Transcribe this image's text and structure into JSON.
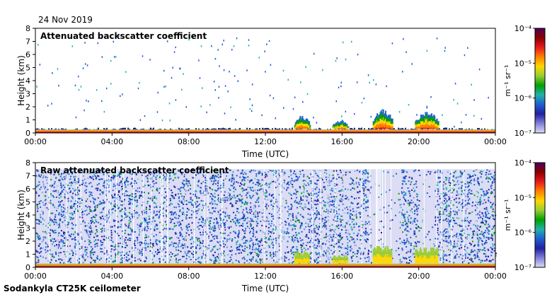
{
  "header": {
    "date": "24 Nov 2019"
  },
  "footer": {
    "instrument": "Sodankyla CT25K ceilometer"
  },
  "colorbar": {
    "unit": "m⁻¹ sr⁻¹",
    "tick_labels": [
      "10⁻⁴",
      "10⁻⁵",
      "10⁻⁶",
      "10⁻⁷"
    ],
    "tick_values": [
      -4,
      -5,
      -6,
      -7
    ],
    "colors": [
      "#4b005c",
      "#8b0000",
      "#e41a1c",
      "#ff7f00",
      "#ffd700",
      "#9acd32",
      "#00a000",
      "#20b2aa",
      "#1f5fd0",
      "#2020a0",
      "#8080d8",
      "#dcdcf4"
    ]
  },
  "chart_data": [
    {
      "type": "heatmap",
      "id": "attenuated",
      "title": "Attenuated backscatter coefficient",
      "xlabel": "Time (UTC)",
      "ylabel": "Height (km)",
      "xlim": [
        0,
        24
      ],
      "ylim": [
        0,
        8
      ],
      "x_ticks": [
        "00:00",
        "04:00",
        "08:00",
        "12:00",
        "16:00",
        "20:00",
        "00:00"
      ],
      "x_tick_values": [
        0,
        4,
        8,
        12,
        16,
        20,
        24
      ],
      "y_ticks": [
        "0",
        "1",
        "2",
        "3",
        "4",
        "5",
        "6",
        "7",
        "8"
      ],
      "y_tick_values": [
        0,
        1,
        2,
        3,
        4,
        5,
        6,
        7,
        8
      ],
      "features": {
        "surface_layer_top_km": 0.3,
        "cloud_events": [
          {
            "start_h": 13.5,
            "end_h": 14.3,
            "top_km": 1.2
          },
          {
            "start_h": 15.5,
            "end_h": 16.3,
            "top_km": 0.9
          },
          {
            "start_h": 17.6,
            "end_h": 18.6,
            "top_km": 1.6
          },
          {
            "start_h": 19.8,
            "end_h": 21.0,
            "top_km": 1.5
          }
        ],
        "sparse_noise_max_km": 7.5
      }
    },
    {
      "type": "heatmap",
      "id": "raw",
      "title": "Raw attenuated backscatter coefficient",
      "xlabel": "Time (UTC)",
      "ylabel": "Height (km)",
      "xlim": [
        0,
        24
      ],
      "ylim": [
        0,
        8
      ],
      "x_ticks": [
        "00:00",
        "04:00",
        "08:00",
        "12:00",
        "16:00",
        "20:00",
        "00:00"
      ],
      "x_tick_values": [
        0,
        4,
        8,
        12,
        16,
        20,
        24
      ],
      "y_ticks": [
        "0",
        "1",
        "2",
        "3",
        "4",
        "5",
        "6",
        "7",
        "8"
      ],
      "y_tick_values": [
        0,
        1,
        2,
        3,
        4,
        5,
        6,
        7,
        8
      ],
      "features": {
        "data_top_km": 7.5,
        "noise_fill": true,
        "low_signal_periods": [
          {
            "start_h": 17.5,
            "end_h": 19.0
          },
          {
            "start_h": 20.0,
            "end_h": 20.8
          }
        ]
      }
    }
  ]
}
